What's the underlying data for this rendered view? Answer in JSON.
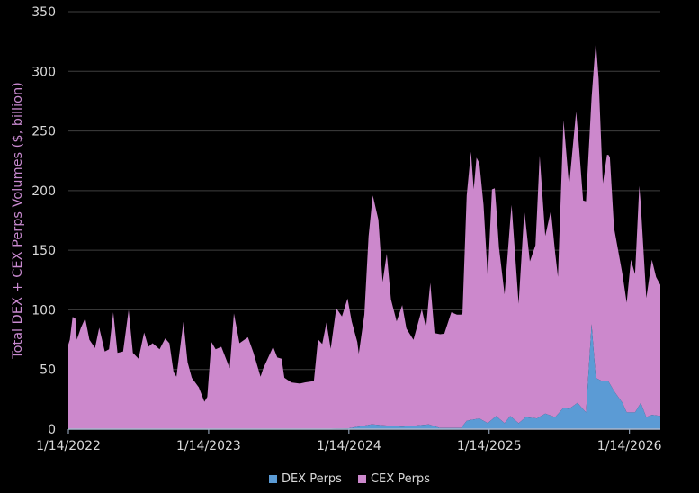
{
  "chart_data": {
    "type": "area",
    "stacked": true,
    "title": "",
    "xlabel": "",
    "ylabel": "Total DEX + CEX Perps Volumes ($, billion)",
    "ylim": [
      0,
      350
    ],
    "yticks": [
      0,
      50,
      100,
      150,
      200,
      250,
      300,
      350
    ],
    "xlim_decimal_year": [
      2022.04,
      2026.26
    ],
    "xticks": [
      {
        "x": 2022.04,
        "label": "1/14/2022"
      },
      {
        "x": 2023.04,
        "label": "1/14/2023"
      },
      {
        "x": 2024.04,
        "label": "1/14/2024"
      },
      {
        "x": 2025.04,
        "label": "1/14/2025"
      },
      {
        "x": 2026.04,
        "label": "1/14/2026"
      }
    ],
    "grid": true,
    "legend_position": "bottom",
    "series": [
      {
        "name": "DEX Perps",
        "color": "#5b9bd5",
        "x": [
          2022.04,
          2023.5,
          2024.03,
          2024.2,
          2024.42,
          2024.61,
          2024.69,
          2024.84,
          2024.88,
          2024.97,
          2025.03,
          2025.09,
          2025.15,
          2025.19,
          2025.25,
          2025.3,
          2025.38,
          2025.44,
          2025.51,
          2025.57,
          2025.61,
          2025.67,
          2025.73,
          2025.77,
          2025.8,
          2025.85,
          2025.89,
          2025.93,
          2025.99,
          2026.02,
          2026.08,
          2026.12,
          2026.16,
          2026.2,
          2026.26
        ],
        "values": [
          0,
          0,
          0.5,
          4,
          2,
          4,
          1,
          1,
          7,
          9,
          5,
          11,
          5,
          11,
          5,
          10,
          9,
          13,
          10,
          18,
          17,
          22,
          14,
          88,
          43,
          40,
          40,
          32,
          22,
          14,
          14,
          22,
          10,
          12,
          11
        ]
      },
      {
        "name": "CEX Perps",
        "color": "#cc88cc",
        "x": [
          2022.04,
          2022.05,
          2022.07,
          2022.09,
          2022.1,
          2022.13,
          2022.16,
          2022.19,
          2022.23,
          2022.26,
          2022.3,
          2022.33,
          2022.36,
          2022.39,
          2022.43,
          2022.47,
          2022.5,
          2022.54,
          2022.58,
          2022.61,
          2022.64,
          2022.69,
          2022.73,
          2022.76,
          2022.79,
          2022.81,
          2022.86,
          2022.89,
          2022.92,
          2022.97,
          2023.01,
          2023.03,
          2023.06,
          2023.09,
          2023.13,
          2023.19,
          2023.22,
          2023.26,
          2023.32,
          2023.36,
          2023.41,
          2023.43,
          2023.5,
          2023.53,
          2023.56,
          2023.58,
          2023.63,
          2023.69,
          2023.73,
          2023.79,
          2023.82,
          2023.85,
          2023.88,
          2023.91,
          2023.95,
          2023.99,
          2024.03,
          2024.06,
          2024.1,
          2024.11,
          2024.15,
          2024.18,
          2024.21,
          2024.25,
          2024.28,
          2024.31,
          2024.34,
          2024.38,
          2024.42,
          2024.45,
          2024.5,
          2024.56,
          2024.59,
          2024.62,
          2024.65,
          2024.72,
          2024.77,
          2024.81,
          2024.85,
          2024.88,
          2024.91,
          2024.93,
          2024.95,
          2024.97,
          2025.0,
          2025.03,
          2025.06,
          2025.08,
          2025.11,
          2025.15,
          2025.2,
          2025.25,
          2025.29,
          2025.33,
          2025.37,
          2025.4,
          2025.44,
          2025.48,
          2025.53,
          2025.57,
          2025.61,
          2025.66,
          2025.68,
          2025.71,
          2025.73,
          2025.77,
          2025.8,
          2025.82,
          2025.85,
          2025.88,
          2025.9,
          2025.93,
          2025.99,
          2026.02,
          2026.05,
          2026.08,
          2026.11,
          2026.16,
          2026.2,
          2026.23,
          2026.26
        ],
        "values": [
          71,
          75,
          94,
          93,
          75,
          85,
          93,
          75,
          68,
          85,
          65,
          67,
          98,
          64,
          65,
          100,
          64,
          59,
          81,
          69,
          72,
          67,
          76,
          72,
          48,
          44,
          90,
          56,
          43,
          35,
          23,
          27,
          73,
          67,
          69,
          51,
          97,
          72,
          77,
          64,
          44,
          51,
          69,
          60,
          59,
          43,
          39,
          38,
          39,
          40,
          75,
          71,
          89,
          67,
          101,
          94,
          109,
          89,
          71,
          61,
          93,
          158,
          192,
          172,
          120,
          144,
          106,
          88,
          102,
          82,
          72,
          97,
          81,
          119,
          78,
          79,
          97,
          95,
          95,
          189,
          225,
          193,
          219,
          214,
          181,
          122,
          193,
          192,
          143,
          108,
          178,
          100,
          174,
          131,
          145,
          219,
          149,
          172,
          115,
          241,
          187,
          245,
          216,
          175,
          177,
          190,
          282,
          252,
          166,
          190,
          190,
          137,
          108,
          92,
          128,
          116,
          184,
          100,
          130,
          116,
          110
        ]
      }
    ]
  }
}
